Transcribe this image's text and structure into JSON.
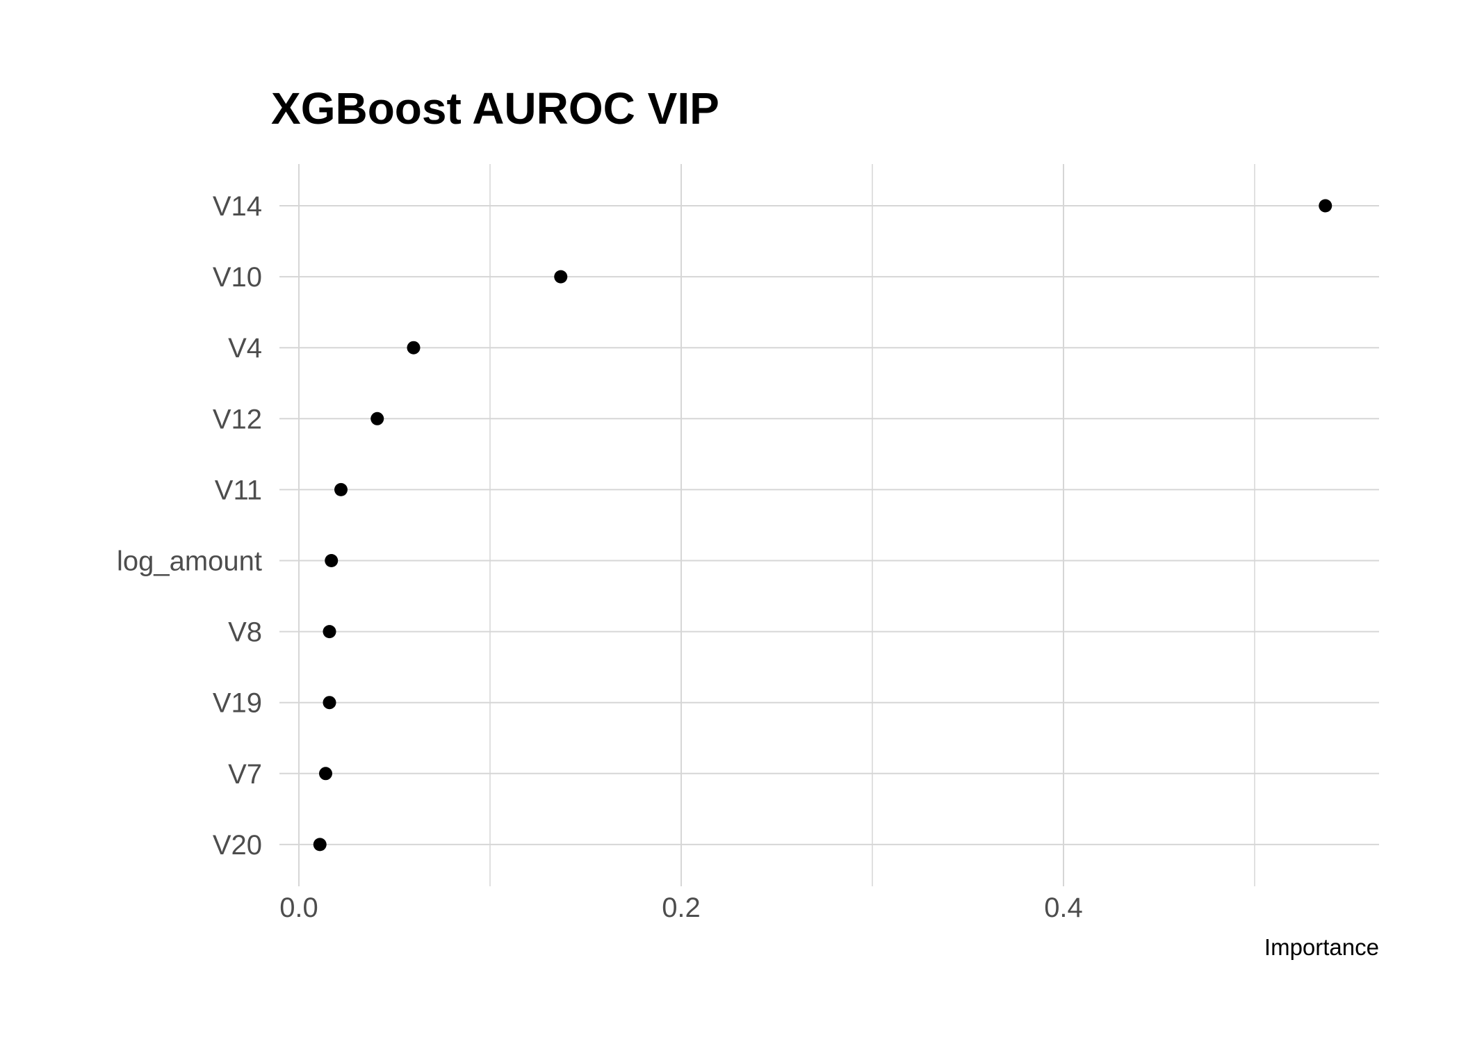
{
  "chart_data": {
    "type": "scatter",
    "title": "XGBoost AUROC VIP",
    "xlabel": "Importance",
    "ylabel": "",
    "categories": [
      "V14",
      "V10",
      "V4",
      "V12",
      "V11",
      "log_amount",
      "V8",
      "V19",
      "V7",
      "V20"
    ],
    "values": [
      0.537,
      0.137,
      0.06,
      0.041,
      0.022,
      0.017,
      0.016,
      0.016,
      0.014,
      0.011
    ],
    "x_ticks": [
      0.0,
      0.2,
      0.4
    ],
    "x_tick_labels": [
      "0.0",
      "0.2",
      "0.4"
    ],
    "xlim": [
      0.0,
      0.563
    ],
    "grid": true,
    "legend": "none",
    "colors": {
      "point": "#000000",
      "grid": "#d6d6d6",
      "tick_text": "#4d4d4d",
      "title": "#000000"
    }
  }
}
